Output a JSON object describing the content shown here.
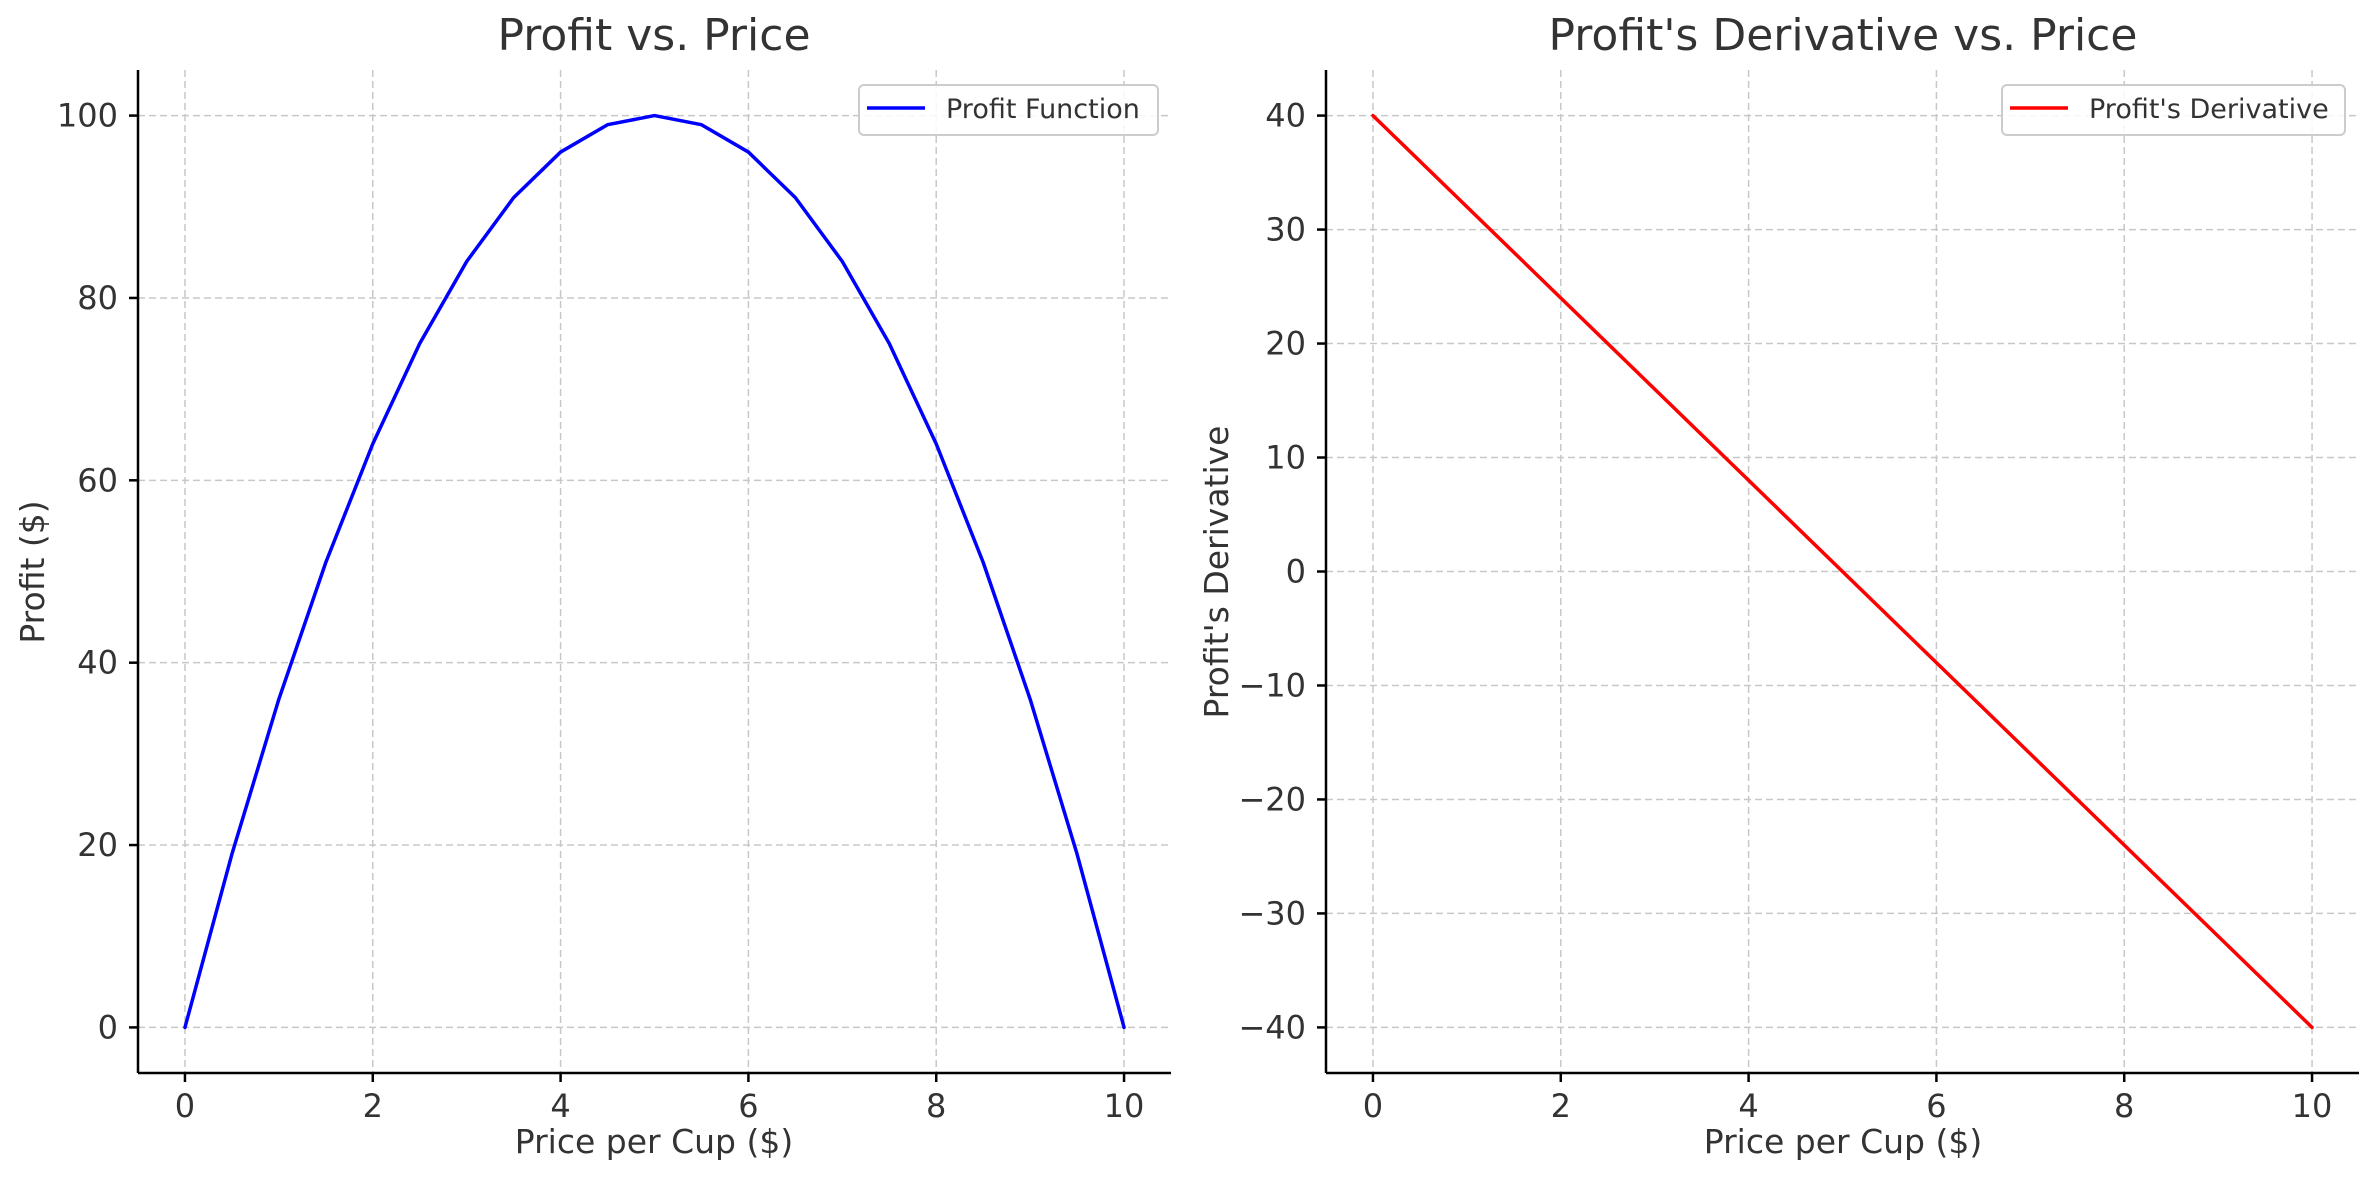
{
  "chart_data": [
    {
      "type": "line",
      "title": "Profit vs. Price",
      "xlabel": "Price per Cup ($)",
      "ylabel": "Profit ($)",
      "xlim": [
        -0.5,
        10.5
      ],
      "ylim": [
        -5,
        105
      ],
      "xticks": [
        0,
        2,
        4,
        6,
        8,
        10
      ],
      "yticks": [
        0,
        20,
        40,
        60,
        80,
        100
      ],
      "xtick_labels": [
        "0",
        "2",
        "4",
        "6",
        "8",
        "10"
      ],
      "ytick_labels": [
        "0",
        "20",
        "40",
        "60",
        "80",
        "100"
      ],
      "grid": true,
      "legend_position": "top-right",
      "series": [
        {
          "name": "Profit Function",
          "color": "#0000ff",
          "x": [
            0,
            0.5,
            1,
            1.5,
            2,
            2.5,
            3,
            3.5,
            4,
            4.5,
            5,
            5.5,
            6,
            6.5,
            7,
            7.5,
            8,
            8.5,
            9,
            9.5,
            10
          ],
          "y": [
            0,
            19,
            36,
            51,
            64,
            75,
            84,
            91,
            96,
            99,
            100,
            99,
            96,
            91,
            84,
            75,
            64,
            51,
            36,
            19,
            0
          ]
        }
      ]
    },
    {
      "type": "line",
      "title": "Profit's Derivative vs. Price",
      "xlabel": "Price per Cup ($)",
      "ylabel": "Profit's Derivative",
      "xlim": [
        -0.5,
        10.5
      ],
      "ylim": [
        -44,
        44
      ],
      "xticks": [
        0,
        2,
        4,
        6,
        8,
        10
      ],
      "yticks": [
        -40,
        -30,
        -20,
        -10,
        0,
        10,
        20,
        30,
        40
      ],
      "xtick_labels": [
        "0",
        "2",
        "4",
        "6",
        "8",
        "10"
      ],
      "ytick_labels": [
        "−40",
        "−30",
        "−20",
        "−10",
        "0",
        "10",
        "20",
        "30",
        "40"
      ],
      "grid": true,
      "legend_position": "top-right",
      "series": [
        {
          "name": "Profit's Derivative",
          "color": "#ff0000",
          "x": [
            0,
            10
          ],
          "y": [
            40,
            -40
          ]
        }
      ]
    }
  ]
}
